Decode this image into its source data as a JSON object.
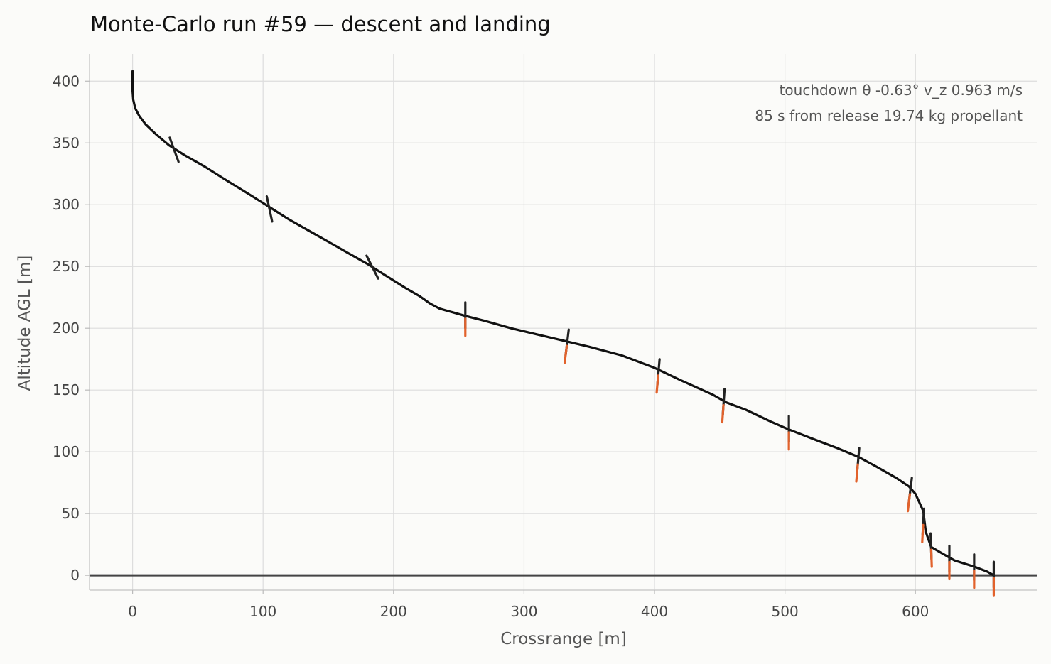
{
  "chart_data": {
    "type": "line",
    "title": "Monte-Carlo run #59 — descent and landing",
    "xlabel": "Crossrange [m]",
    "ylabel": "Altitude AGL [m]",
    "xlim": [
      -33,
      693
    ],
    "ylim": [
      -12,
      422
    ],
    "xticks": [
      0,
      100,
      200,
      300,
      400,
      500,
      600
    ],
    "yticks": [
      0,
      50,
      100,
      150,
      200,
      250,
      300,
      350,
      400
    ],
    "grid": true,
    "ground_line_y": 0,
    "annotations": [
      "touchdown  θ -0.63°   v_z 0.963 m/s",
      "85 s from release   19.74 kg propellant"
    ],
    "trajectory": {
      "x": [
        0,
        0,
        0,
        0.5,
        2,
        5,
        10,
        18,
        28,
        40,
        55,
        70,
        90,
        105,
        120,
        135,
        150,
        165,
        180,
        195,
        210,
        220,
        228,
        235,
        245,
        255,
        270,
        290,
        310,
        330,
        350,
        375,
        400,
        420,
        445,
        455,
        470,
        490,
        503,
        520,
        540,
        556,
        570,
        585,
        595,
        600,
        603,
        606,
        608,
        612,
        620,
        630,
        645,
        655,
        660
      ],
      "y": [
        408,
        400,
        392,
        385,
        378,
        372,
        365,
        357,
        348,
        340,
        331,
        321,
        308,
        298,
        288,
        279,
        270,
        261,
        252,
        242,
        232,
        226,
        220,
        216,
        213,
        210,
        206,
        200,
        195,
        190,
        185,
        178,
        168,
        158,
        146,
        140,
        134,
        124,
        118,
        111,
        103,
        96,
        88,
        79,
        72,
        66,
        59,
        52,
        35,
        23,
        18,
        12,
        7,
        3,
        0
      ]
    },
    "attitude_markers": [
      {
        "x": 32,
        "y": 344,
        "tilt_deg": -20,
        "thrust": 0
      },
      {
        "x": 105,
        "y": 296,
        "tilt_deg": -12,
        "thrust": 0
      },
      {
        "x": 184,
        "y": 249,
        "tilt_deg": -27,
        "thrust": 0
      },
      {
        "x": 255,
        "y": 210,
        "tilt_deg": 0,
        "thrust": 1
      },
      {
        "x": 333,
        "y": 188,
        "tilt_deg": 7,
        "thrust": 1
      },
      {
        "x": 403,
        "y": 164,
        "tilt_deg": 5,
        "thrust": 1
      },
      {
        "x": 453,
        "y": 140,
        "tilt_deg": 4,
        "thrust": 1
      },
      {
        "x": 503,
        "y": 118,
        "tilt_deg": 0,
        "thrust": 1
      },
      {
        "x": 556,
        "y": 92,
        "tilt_deg": 5,
        "thrust": 1
      },
      {
        "x": 596,
        "y": 68,
        "tilt_deg": 7,
        "thrust": 1
      },
      {
        "x": 606,
        "y": 43,
        "tilt_deg": 3,
        "thrust": 1
      },
      {
        "x": 612,
        "y": 23,
        "tilt_deg": -2,
        "thrust": 1
      },
      {
        "x": 626,
        "y": 13,
        "tilt_deg": 0,
        "thrust": 1
      },
      {
        "x": 645,
        "y": 6,
        "tilt_deg": 0,
        "thrust": 1
      },
      {
        "x": 660,
        "y": 0,
        "tilt_deg": 0,
        "thrust": 1
      }
    ]
  },
  "colors": {
    "background": "#fbfbf9",
    "grid": "#dddddd",
    "axis": "#cccccc",
    "trajectory": "#111111",
    "marker_body": "#222222",
    "thrust_plume": "#e2622c",
    "ground": "#444444"
  }
}
